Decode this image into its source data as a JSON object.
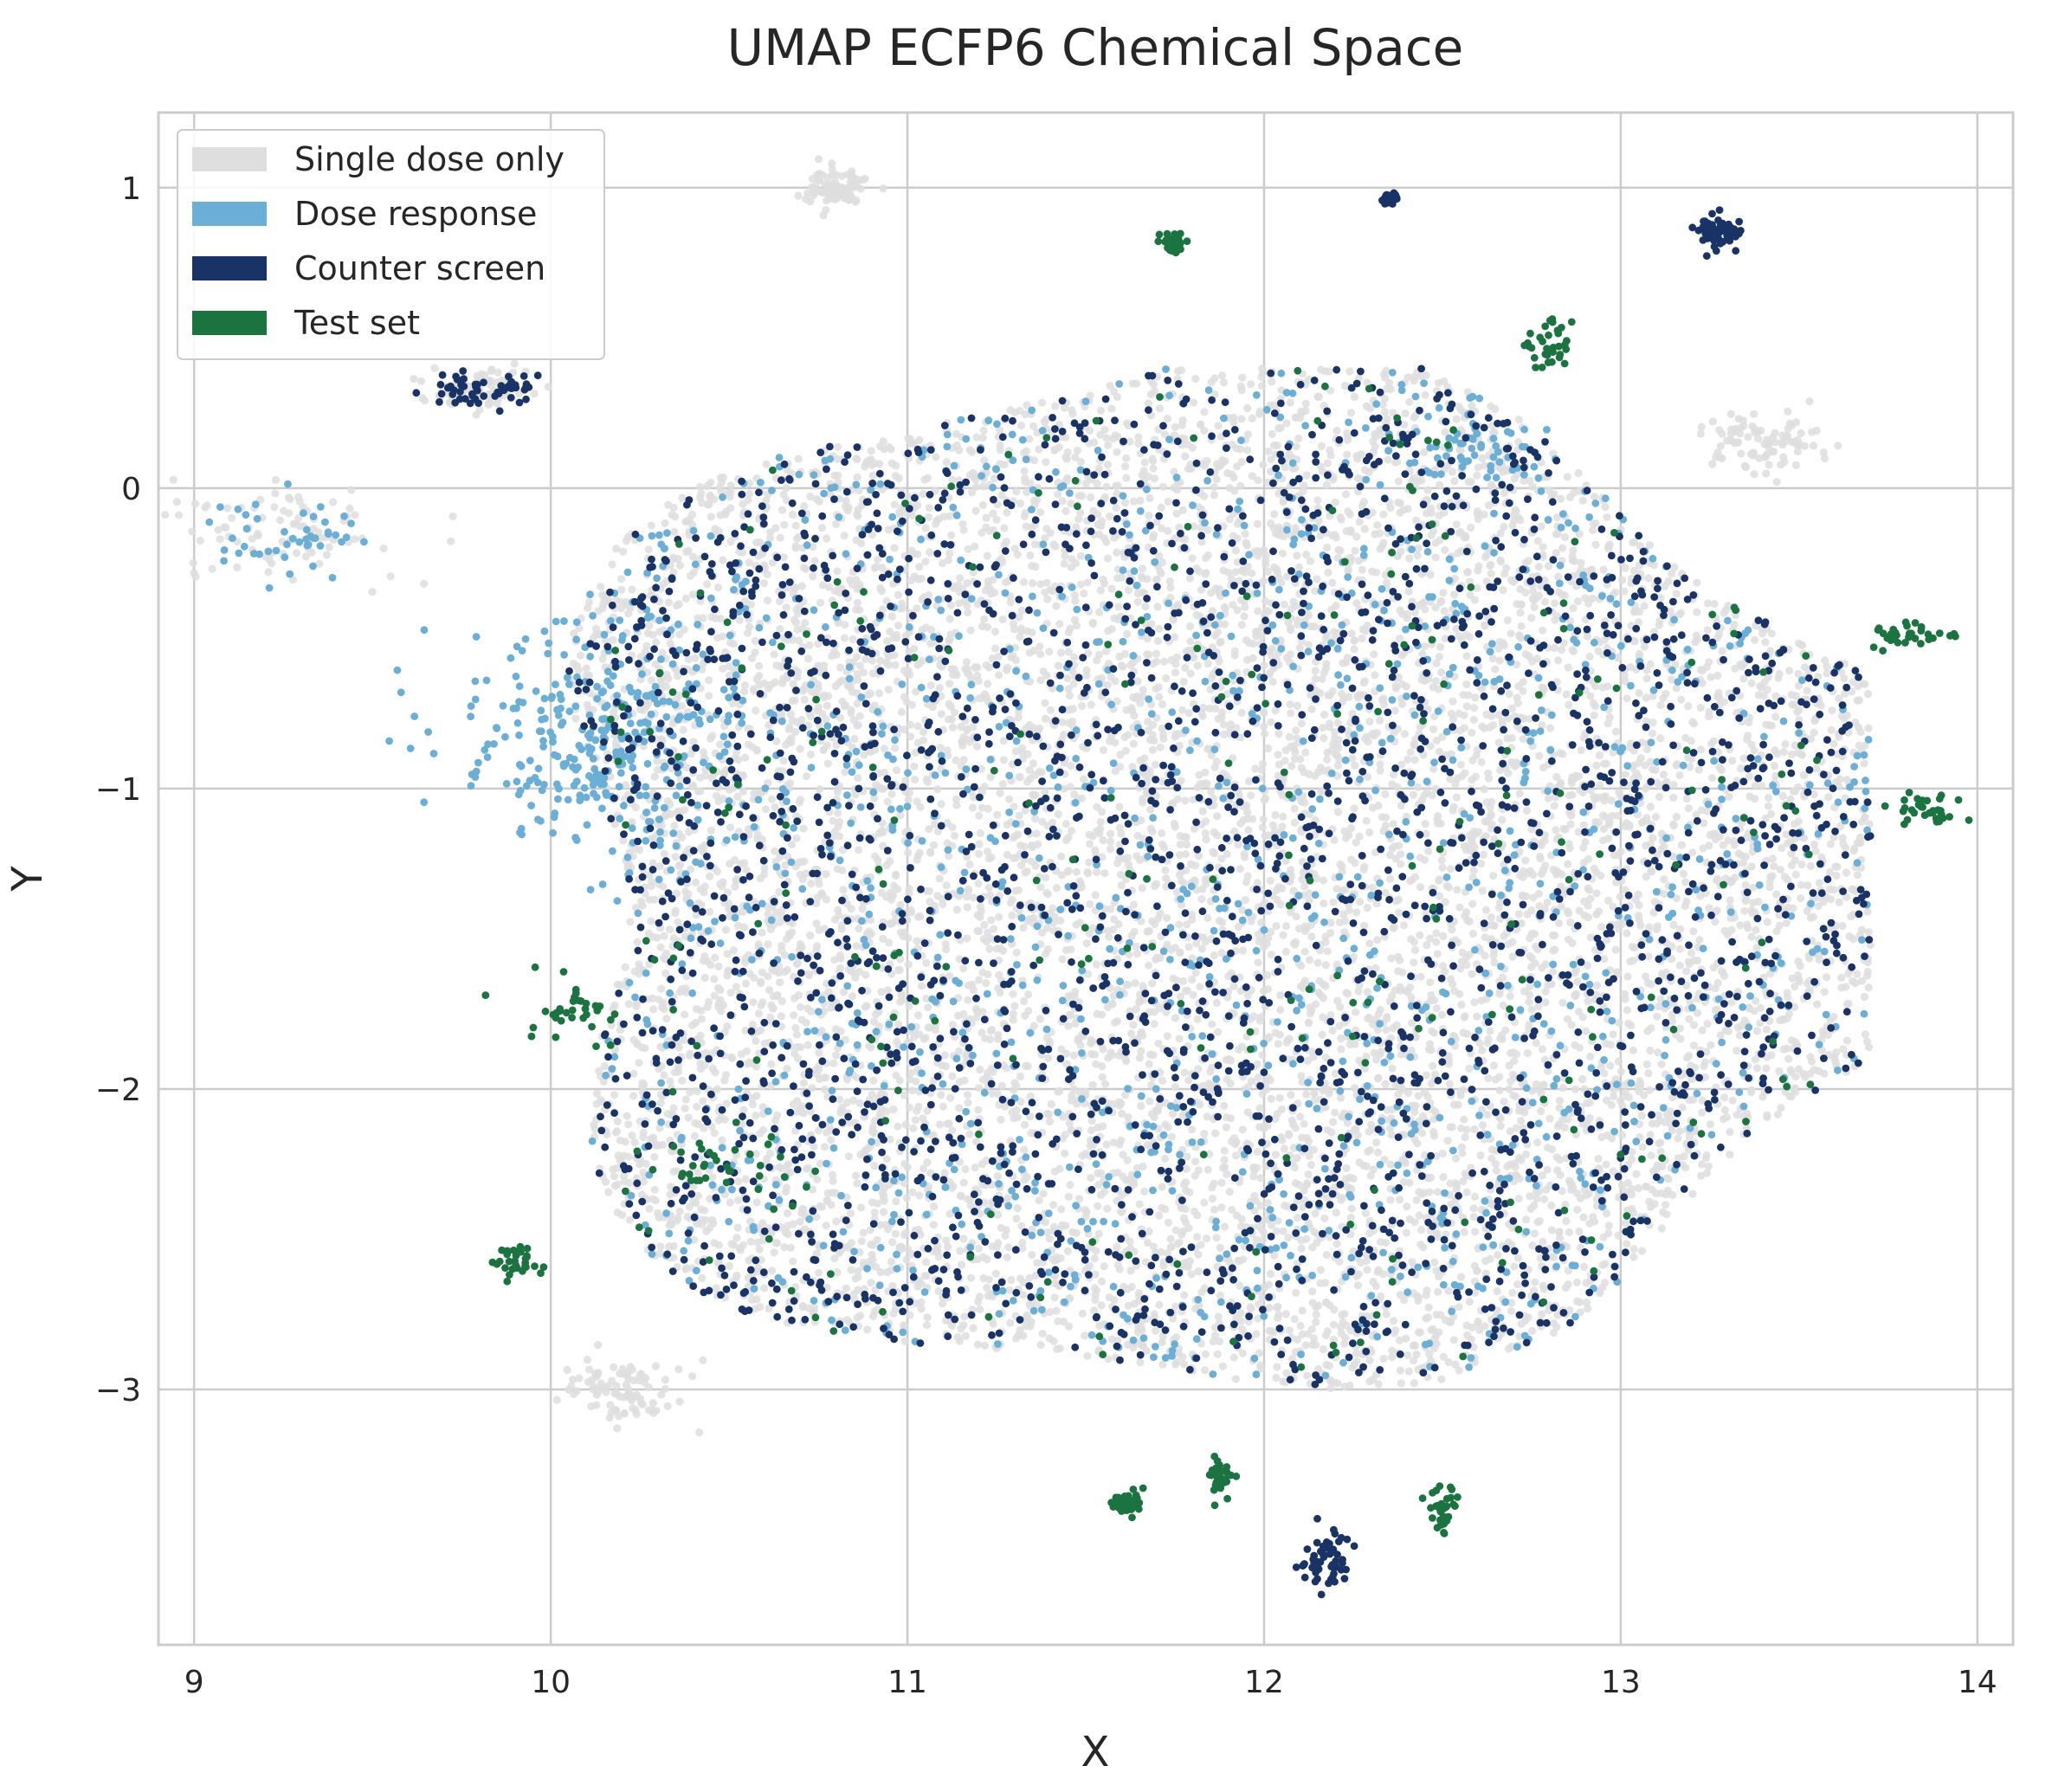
{
  "chart_data": {
    "type": "scatter",
    "title": "UMAP ECFP6 Chemical Space",
    "xlabel": "X",
    "ylabel": "Y",
    "xlim": [
      8.9,
      14.1
    ],
    "ylim": [
      -3.85,
      1.25
    ],
    "xticks": [
      9,
      10,
      11,
      12,
      13,
      14
    ],
    "yticks": [
      1,
      0,
      -1,
      -2,
      -3
    ],
    "ytick_labels": [
      "1",
      "0",
      "−1",
      "−2",
      "−3"
    ],
    "grid": true,
    "legend_position": "top-left",
    "colors": {
      "single_dose": "#d9d9d9",
      "dose_response": "#6baed6",
      "counter_screen": "#1a3366",
      "test_set": "#1b7340",
      "grid": "#cccccc",
      "frame": "#cccccc"
    },
    "series": [
      {
        "name": "Single dose only",
        "color": "#dedede",
        "point_count": 9000
      },
      {
        "name": "Dose response",
        "color": "#6baed6",
        "point_count": 1700
      },
      {
        "name": "Counter screen",
        "color": "#1a3366",
        "point_count": 2800
      },
      {
        "name": "Test set",
        "color": "#1b7340",
        "point_count": 600
      }
    ],
    "distribution": {
      "main_cloud": {
        "center": [
          11.9,
          -1.3
        ],
        "x_range": [
          9.8,
          13.7
        ],
        "y_range": [
          -3.4,
          0.4
        ]
      },
      "clusters": [
        {
          "series": "Single dose only",
          "center": [
            9.25,
            -0.15
          ],
          "spread": [
            0.15,
            0.08
          ]
        },
        {
          "series": "Dose response",
          "center": [
            9.25,
            -0.15
          ],
          "spread": [
            0.12,
            0.06
          ]
        },
        {
          "series": "Single dose only",
          "center": [
            9.8,
            0.33
          ],
          "spread": [
            0.08,
            0.03
          ]
        },
        {
          "series": "Counter screen",
          "center": [
            9.8,
            0.33
          ],
          "spread": [
            0.08,
            0.03
          ]
        },
        {
          "series": "Single dose only",
          "center": [
            10.8,
            1.0
          ],
          "spread": [
            0.04,
            0.03
          ]
        },
        {
          "series": "Counter screen",
          "center": [
            12.35,
            0.96
          ],
          "spread": [
            0.01,
            0.01
          ]
        },
        {
          "series": "Counter screen",
          "center": [
            13.27,
            0.86
          ],
          "spread": [
            0.03,
            0.03
          ]
        },
        {
          "series": "Test set",
          "center": [
            11.75,
            0.81
          ],
          "spread": [
            0.02,
            0.02
          ]
        },
        {
          "series": "Test set",
          "center": [
            12.8,
            0.48
          ],
          "spread": [
            0.03,
            0.05
          ]
        },
        {
          "series": "Test set",
          "center": [
            13.85,
            -1.08
          ],
          "spread": [
            0.06,
            0.03
          ]
        },
        {
          "series": "Test set",
          "center": [
            13.8,
            -0.49
          ],
          "spread": [
            0.05,
            0.02
          ]
        },
        {
          "series": "Test set",
          "center": [
            12.5,
            -3.4
          ],
          "spread": [
            0.02,
            0.04
          ]
        },
        {
          "series": "Test set",
          "center": [
            11.62,
            -3.38
          ],
          "spread": [
            0.02,
            0.02
          ]
        },
        {
          "series": "Test set",
          "center": [
            11.88,
            -3.3
          ],
          "spread": [
            0.02,
            0.03
          ]
        },
        {
          "series": "Counter screen",
          "center": [
            12.17,
            -3.57
          ],
          "spread": [
            0.03,
            0.05
          ]
        },
        {
          "series": "Test set",
          "center": [
            9.9,
            -2.57
          ],
          "spread": [
            0.03,
            0.03
          ]
        },
        {
          "series": "Test set",
          "center": [
            10.05,
            -1.73
          ],
          "spread": [
            0.08,
            0.05
          ]
        },
        {
          "series": "Test set",
          "center": [
            10.45,
            -2.25
          ],
          "spread": [
            0.1,
            0.05
          ]
        },
        {
          "series": "Single dose only",
          "center": [
            10.2,
            -3.0
          ],
          "spread": [
            0.08,
            0.05
          ]
        },
        {
          "series": "Dose response",
          "center": [
            10.15,
            -0.85
          ],
          "spread": [
            0.2,
            0.15
          ]
        },
        {
          "series": "Dose response",
          "center": [
            12.6,
            0.15
          ],
          "spread": [
            0.1,
            0.05
          ]
        },
        {
          "series": "Single dose only",
          "center": [
            13.4,
            0.15
          ],
          "spread": [
            0.08,
            0.05
          ]
        }
      ]
    }
  }
}
